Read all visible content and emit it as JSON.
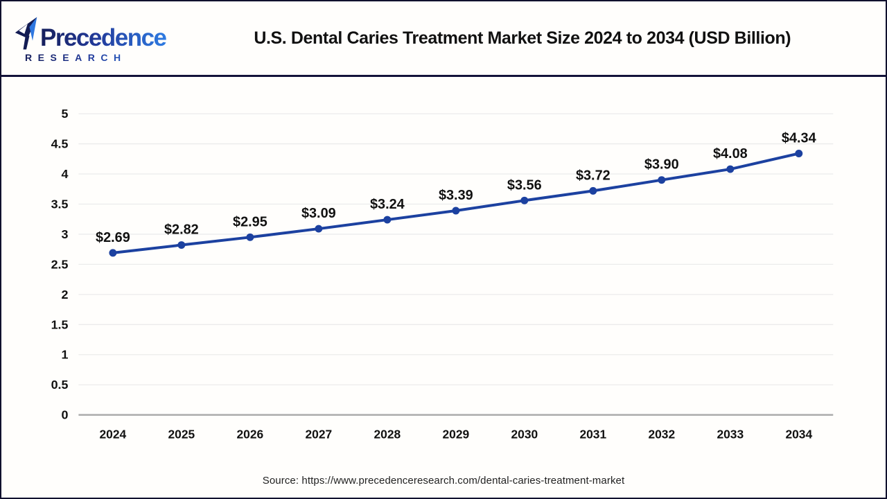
{
  "header": {
    "logo": {
      "name": "Precedence",
      "subtitle": "RESEARCH"
    },
    "title": "U.S. Dental Caries Treatment Market Size 2024 to 2034 (USD Billion)"
  },
  "chart_data": {
    "type": "line",
    "title": "U.S. Dental Caries Treatment Market Size 2024 to 2034 (USD Billion)",
    "categories": [
      "2024",
      "2025",
      "2026",
      "2027",
      "2028",
      "2029",
      "2030",
      "2031",
      "2032",
      "2033",
      "2034"
    ],
    "values": [
      2.69,
      2.82,
      2.95,
      3.09,
      3.24,
      3.39,
      3.56,
      3.72,
      3.9,
      4.08,
      4.34
    ],
    "labels": [
      "$2.69",
      "$2.82",
      "$2.95",
      "$3.09",
      "$3.24",
      "$3.39",
      "$3.56",
      "$3.72",
      "$3.90",
      "$4.08",
      "$4.34"
    ],
    "xlabel": "",
    "ylabel": "",
    "ylim": [
      0,
      5
    ],
    "yticks": [
      {
        "value": 0,
        "label": "0"
      },
      {
        "value": 0.5,
        "label": "0.5"
      },
      {
        "value": 1,
        "label": "1"
      },
      {
        "value": 1.5,
        "label": "1.5"
      },
      {
        "value": 2,
        "label": "2"
      },
      {
        "value": 2.5,
        "label": "2.5"
      },
      {
        "value": 3,
        "label": "3"
      },
      {
        "value": 3.5,
        "label": "3.5"
      },
      {
        "value": 4,
        "label": "4"
      },
      {
        "value": 4.5,
        "label": "4.5"
      },
      {
        "value": 5,
        "label": "5"
      }
    ],
    "grid": true,
    "legend": "none",
    "line_color": "#1c41a0",
    "marker_color": "#1c41a0",
    "gridline_color": "#ebebeb",
    "axis_line_color": "#ababab"
  },
  "footer": {
    "source": "Source: https://www.precedenceresearch.com/dental-caries-treatment-market"
  }
}
